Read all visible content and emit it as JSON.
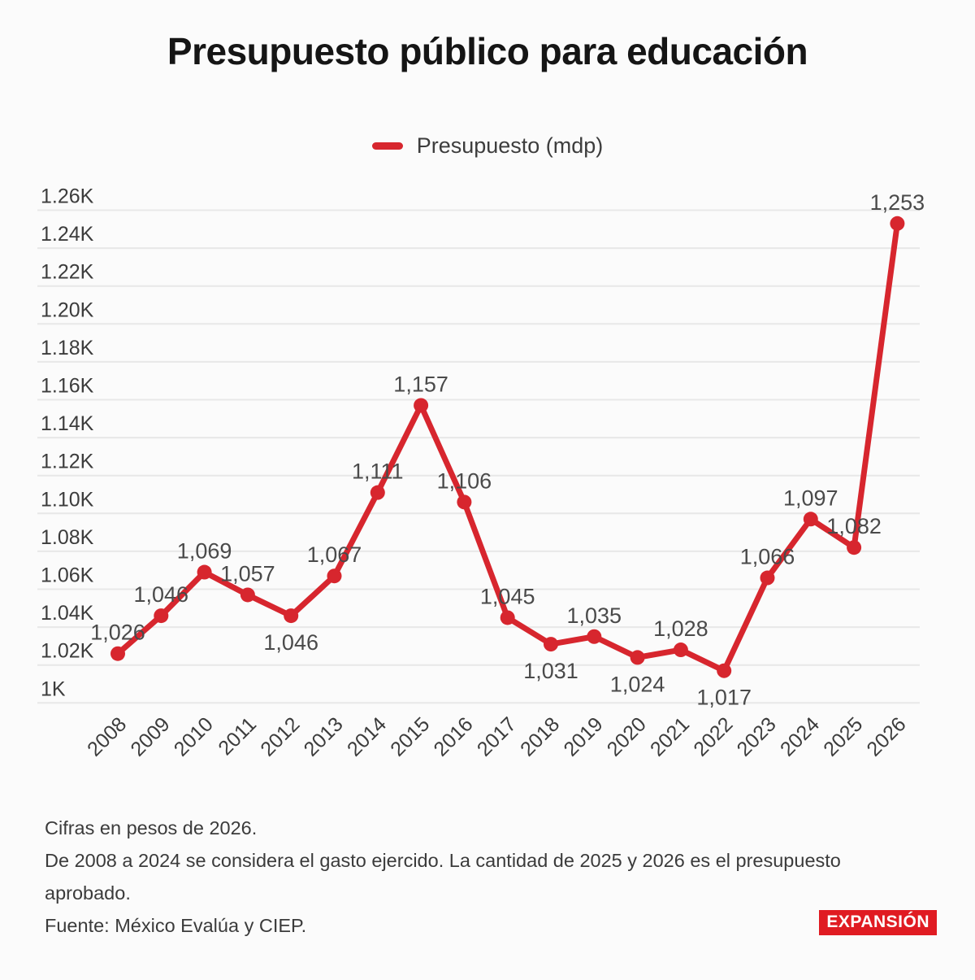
{
  "title": "Presupuesto público para educación",
  "legend": {
    "label": "Presupuesto (mdp)",
    "color": "#d7262e"
  },
  "chart_data": {
    "type": "line",
    "title": "Presupuesto público para educación",
    "xlabel": "",
    "ylabel": "",
    "x": [
      2008,
      2009,
      2010,
      2011,
      2012,
      2013,
      2014,
      2015,
      2016,
      2017,
      2018,
      2019,
      2020,
      2021,
      2022,
      2023,
      2024,
      2025,
      2026
    ],
    "series": [
      {
        "name": "Presupuesto (mdp)",
        "values": [
          1026,
          1046,
          1069,
          1057,
          1046,
          1067,
          1111,
          1157,
          1106,
          1045,
          1031,
          1035,
          1024,
          1028,
          1017,
          1066,
          1097,
          1082,
          1253
        ],
        "color": "#d7262e"
      }
    ],
    "point_labels": [
      "1,026",
      "1,046",
      "1,069",
      "1,057",
      "1,046",
      "1,067",
      "1,111",
      "1,157",
      "1,106",
      "1,045",
      "1,031",
      "1,035",
      "1,024",
      "1,028",
      "1,017",
      "1,066",
      "1,097",
      "1,082",
      "1,253"
    ],
    "point_label_positions": [
      "above",
      "above",
      "above",
      "above",
      "below",
      "above",
      "above",
      "above",
      "above",
      "above",
      "below",
      "above",
      "below",
      "above",
      "below",
      "above",
      "above",
      "above",
      "above"
    ],
    "ylim": [
      1000,
      1260
    ],
    "ytick_step": 20,
    "ytick_labels": [
      "1K",
      "1.02K",
      "1.04K",
      "1.06K",
      "1.08K",
      "1.10K",
      "1.12K",
      "1.14K",
      "1.16K",
      "1.18K",
      "1.20K",
      "1.22K",
      "1.24K",
      "1.26K"
    ],
    "grid": true,
    "grid_color": "#e8e8e8",
    "legend_position": "top",
    "tick_label_color": "#3c3c3c",
    "point_label_color": "#4a4a4a"
  },
  "footer": {
    "line1": "Cifras en pesos de 2026.",
    "line2": "De 2008 a 2024 se considera el gasto ejercido. La cantidad de 2025 y 2026 es el presupuesto aprobado.",
    "line3": "Fuente: México Evalúa y CIEP."
  },
  "logo": {
    "text": "EXPANSIÓN",
    "bg": "#e01b22",
    "fg": "#ffffff"
  }
}
